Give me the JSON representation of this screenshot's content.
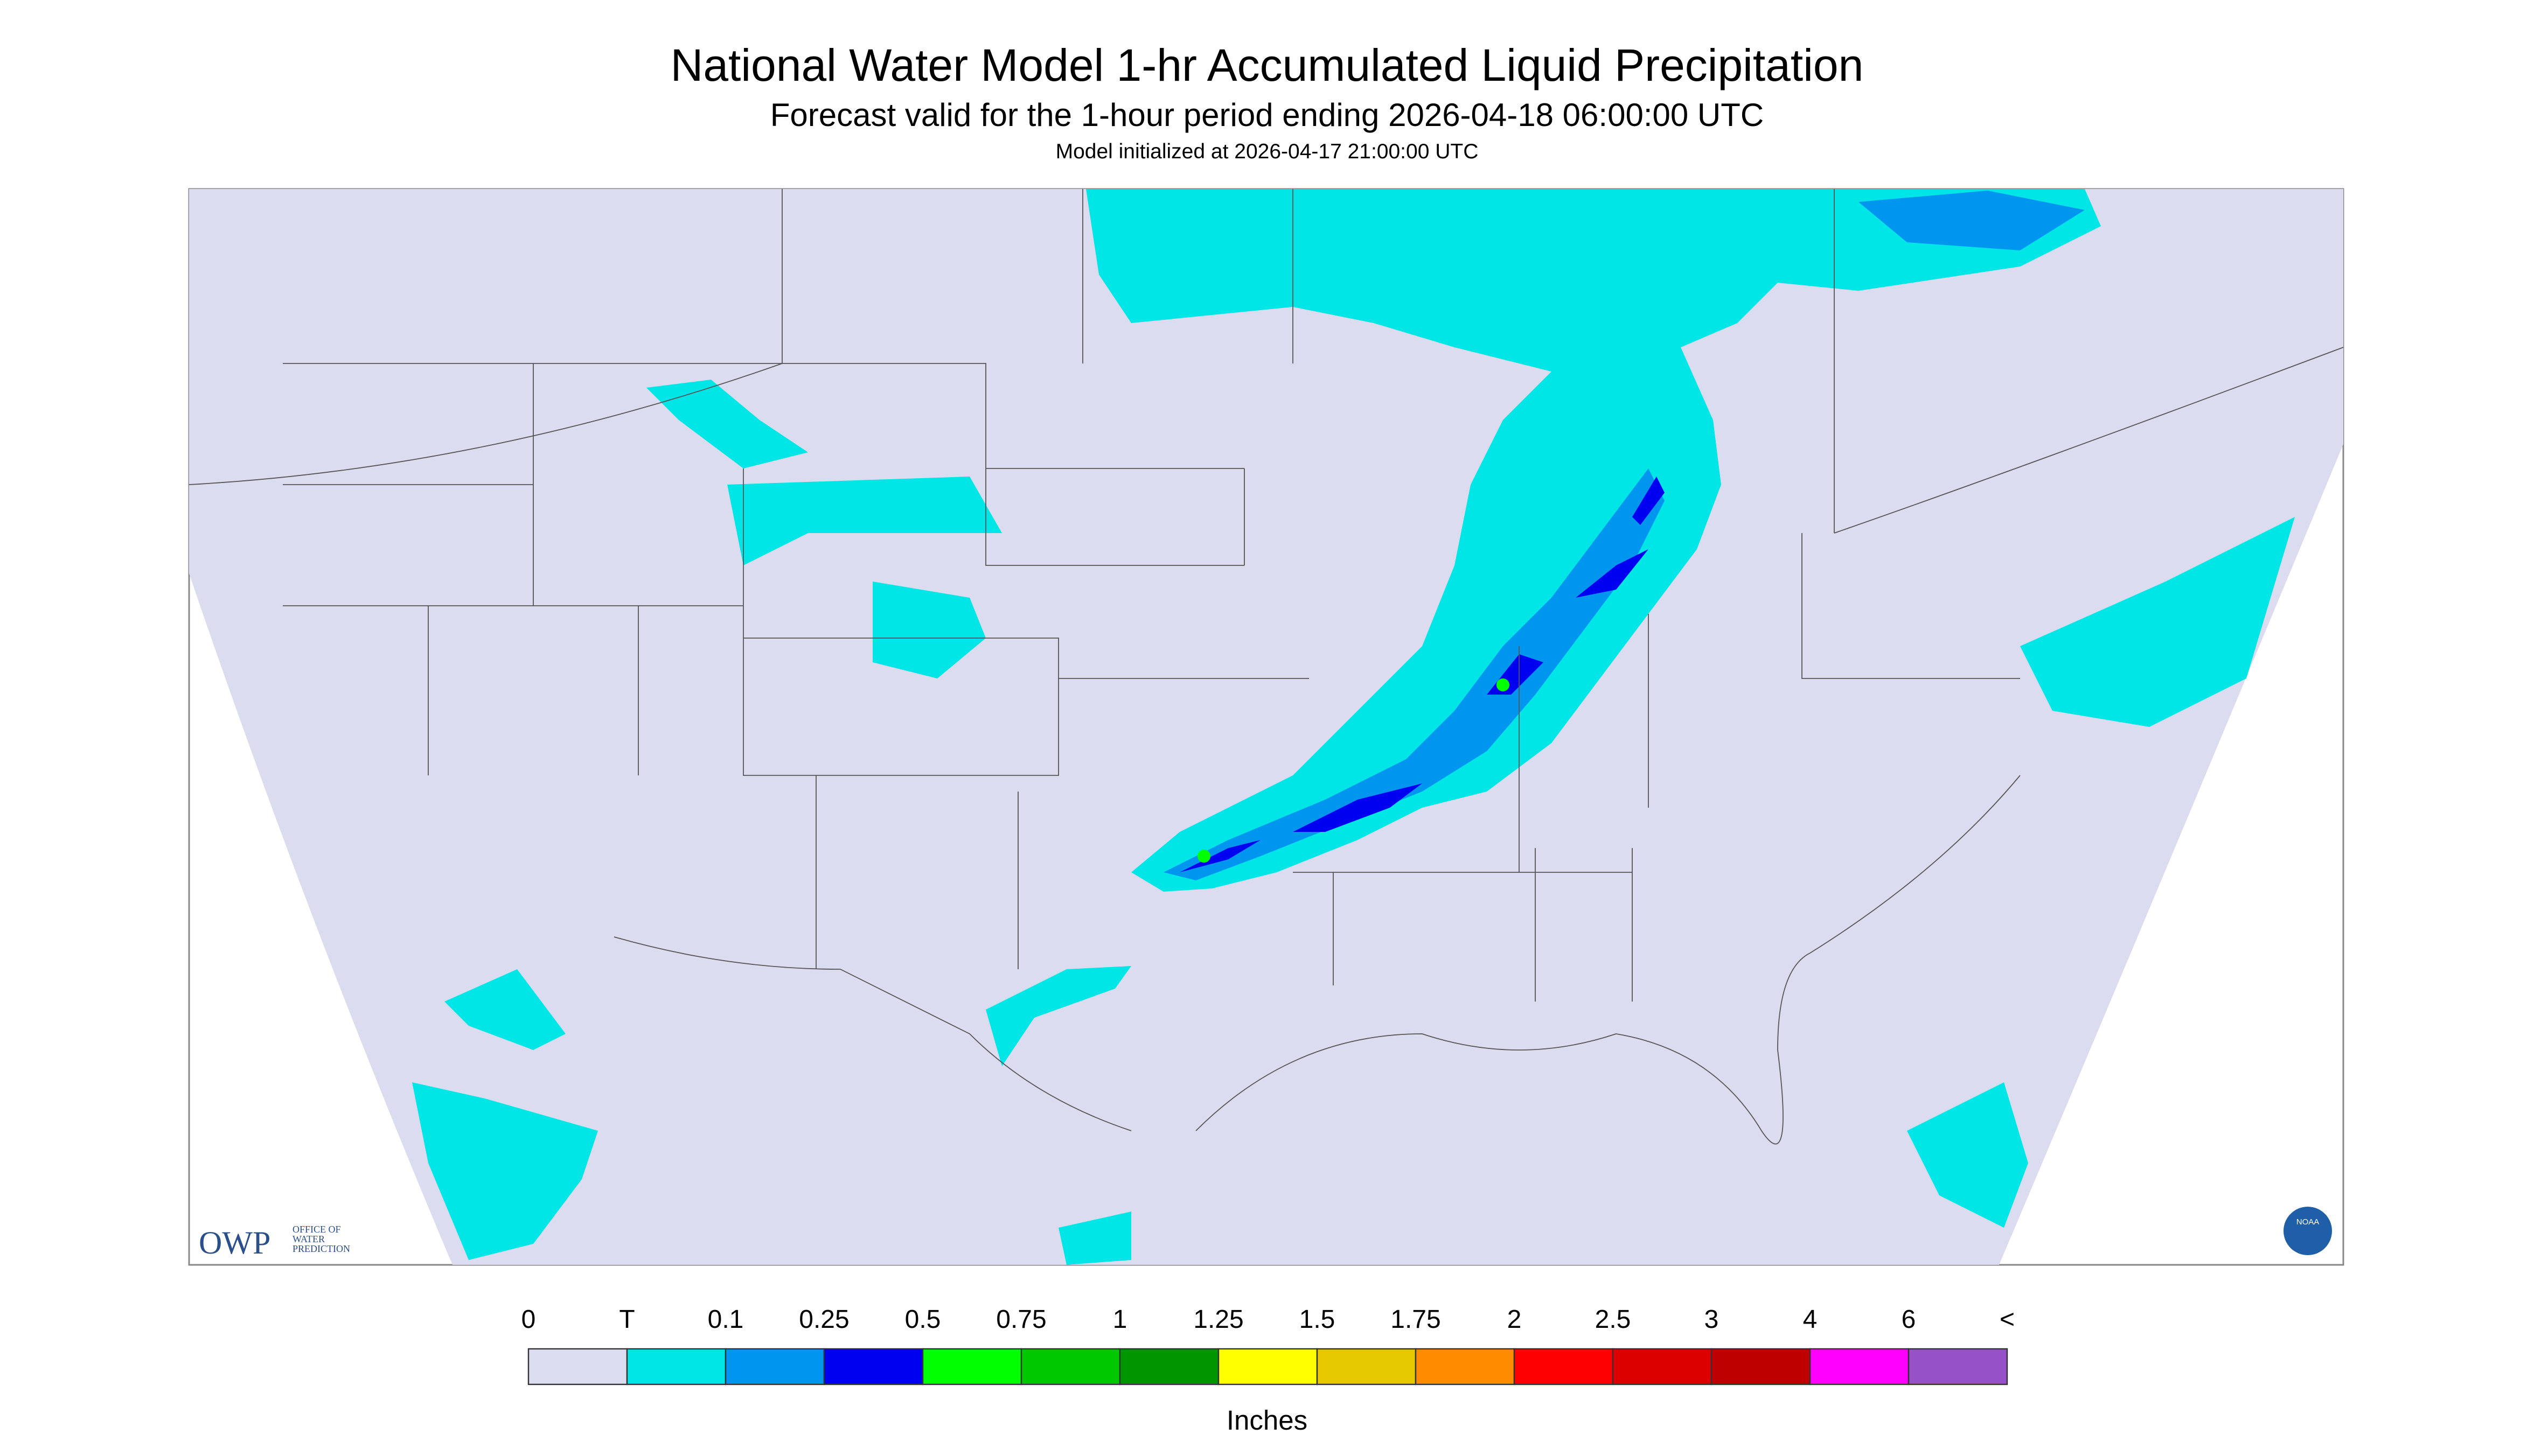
{
  "header": {
    "title": "National Water Model 1-hr Accumulated Liquid Precipitation",
    "subtitle": "Forecast valid for the 1-hour period ending 2026-04-18 06:00:00 UTC",
    "initialized": "Model initialized at 2026-04-17 21:00:00 UTC"
  },
  "legend": {
    "labels": [
      "0",
      "T",
      "0.1",
      "0.25",
      "0.5",
      "0.75",
      "1",
      "1.25",
      "1.5",
      "1.75",
      "2",
      "2.5",
      "3",
      "4",
      "6",
      "<"
    ],
    "colors": [
      "#dcdcf0",
      "#00e6e6",
      "#0096f0",
      "#0000f0",
      "#00ff00",
      "#00c800",
      "#009600",
      "#ffff00",
      "#e6c800",
      "#ff8c00",
      "#ff0000",
      "#dc0000",
      "#be0000",
      "#ff00ff",
      "#9650c8"
    ],
    "unit": "Inches"
  },
  "logos": {
    "owp": "OWP",
    "owp_lines": [
      "OFFICE OF",
      "WATER",
      "PREDICTION"
    ],
    "noaa": "NOAA"
  }
}
